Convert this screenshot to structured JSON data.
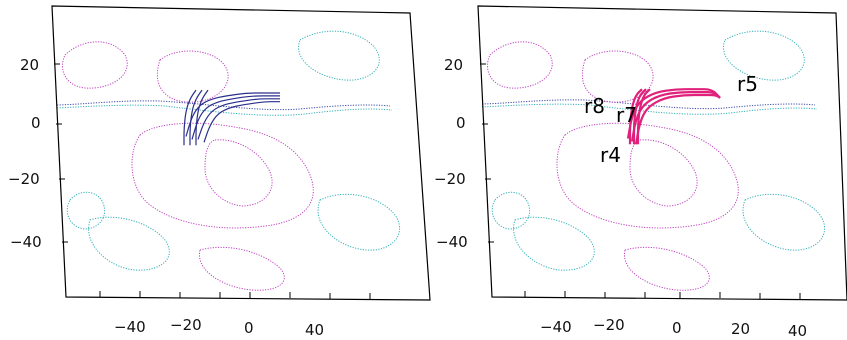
{
  "colors": {
    "positive_contour": "#c040c0",
    "negative_contour": "#30b0b8",
    "neutral_line": "#3a4aa8",
    "left_loops": "#2a2f8a",
    "right_loops": "#e0207a"
  },
  "chart_data": [
    {
      "type": "line",
      "title": "",
      "xlabel": "",
      "ylabel": "",
      "x_ticks": [
        "−40",
        "−20",
        "0",
        "40"
      ],
      "y_ticks": [
        "20",
        "0",
        "−20",
        "−40"
      ],
      "xlim": [
        -60,
        60
      ],
      "ylim": [
        -60,
        40
      ],
      "grid": false,
      "series": [
        {
          "loops": [
            {
              "x": [
                -25,
                -22,
                -18,
                -12,
                -5,
                5,
                15,
                22
              ],
              "y": [
                -5,
                2,
                6,
                8,
                9,
                10,
                10,
                10
              ]
            },
            {
              "x": [
                -22,
                -19,
                -15,
                -9,
                -2,
                8,
                18,
                22
              ],
              "y": [
                -6,
                1,
                5,
                7,
                8,
                9,
                9,
                9
              ]
            },
            {
              "x": [
                -19,
                -16,
                -12,
                -6,
                1,
                11,
                20,
                22
              ],
              "y": [
                -6,
                0,
                4,
                6,
                7,
                8,
                8,
                8
              ]
            },
            {
              "x": [
                -16,
                -13,
                -9,
                -3,
                4,
                14,
                21,
                22
              ],
              "y": [
                -7,
                -1,
                3,
                5,
                6,
                7,
                7,
                7
              ]
            },
            {
              "x": [
                -26,
                -26,
                -25,
                -23,
                -20
              ],
              "y": [
                -8,
                -2,
                4,
                8,
                11
              ]
            },
            {
              "x": [
                -23,
                -23,
                -22,
                -20,
                -17
              ],
              "y": [
                -8,
                -2,
                4,
                8,
                11
              ]
            },
            {
              "x": [
                -20,
                -20,
                -19,
                -17,
                -14
              ],
              "y": [
                -8,
                -2,
                4,
                8,
                11
              ]
            }
          ]
        }
      ]
    },
    {
      "type": "line",
      "title": "",
      "xlabel": "",
      "ylabel": "",
      "x_ticks": [
        "−40",
        "−20",
        "0",
        "20",
        "40"
      ],
      "y_ticks": [
        "20",
        "0",
        "−20",
        "−40"
      ],
      "xlim": [
        -60,
        60
      ],
      "ylim": [
        -60,
        40
      ],
      "grid": false,
      "annotations": [
        "r8",
        "r5",
        "r7",
        "r4"
      ],
      "series": [
        {
          "loops": [
            {
              "x": [
                -24,
                -22,
                -18,
                -10,
                0,
                10,
                18,
                22
              ],
              "y": [
                -5,
                3,
                8,
                11,
                12,
                12,
                12,
                9
              ]
            },
            {
              "x": [
                -22,
                -20,
                -16,
                -8,
                2,
                12,
                19,
                22
              ],
              "y": [
                -6,
                2,
                7,
                10,
                11,
                11,
                11,
                9
              ]
            },
            {
              "x": [
                -20,
                -18,
                -14,
                -6,
                4,
                14,
                20,
                22
              ],
              "y": [
                -7,
                1,
                6,
                9,
                10,
                10,
                10,
                9
              ]
            },
            {
              "x": [
                -23,
                -23,
                -22,
                -20,
                -17
              ],
              "y": [
                -7,
                0,
                6,
                10,
                12
              ]
            },
            {
              "x": [
                -21,
                -21,
                -20,
                -18,
                -15
              ],
              "y": [
                -7,
                0,
                6,
                10,
                12
              ]
            },
            {
              "x": [
                -19,
                -19,
                -18,
                -16,
                -13
              ],
              "y": [
                -7,
                0,
                6,
                10,
                12
              ]
            }
          ]
        }
      ]
    }
  ]
}
